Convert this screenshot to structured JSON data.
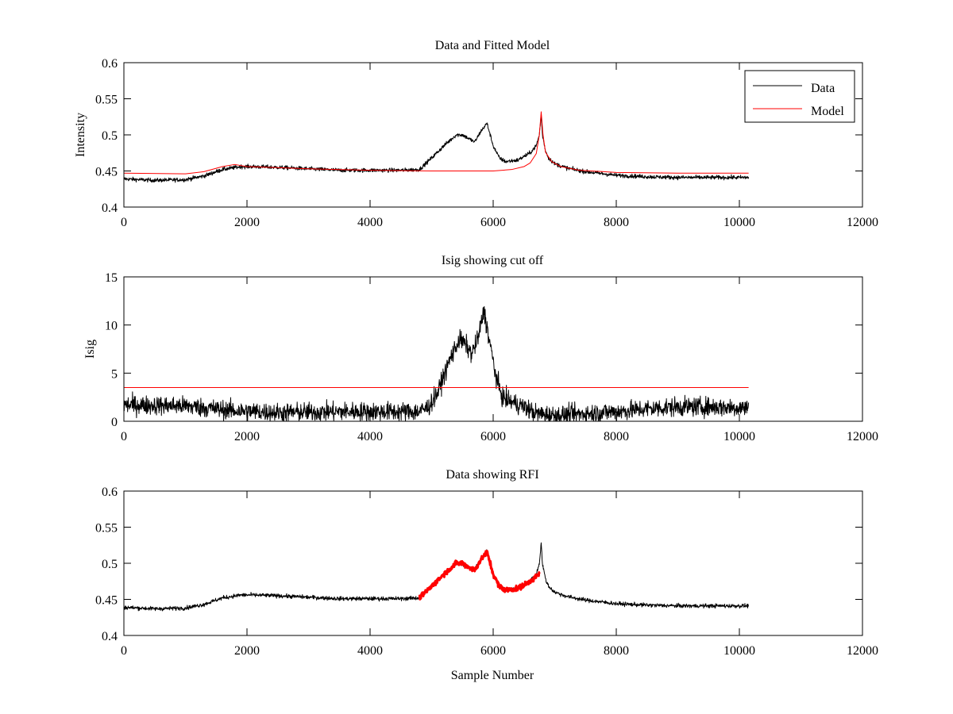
{
  "figure": {
    "background": "#ffffff",
    "axis_color": "#000000",
    "data_color": "#000000",
    "model_color": "#ff0000",
    "rfi_color": "#ff0000"
  },
  "chart_data": [
    {
      "type": "line",
      "title": "Data and Fitted Model",
      "xlabel": "",
      "ylabel": "Intensity",
      "xlim": [
        0,
        12000
      ],
      "ylim": [
        0.4,
        0.6
      ],
      "xticks": [
        0,
        2000,
        4000,
        6000,
        8000,
        10000,
        12000
      ],
      "xtick_labels": [
        "0",
        "2000",
        "4000",
        "6000",
        "8000",
        "10000",
        "12000"
      ],
      "yticks": [
        0.4,
        0.45,
        0.5,
        0.55,
        0.6
      ],
      "ytick_labels": [
        "0.4",
        "0.45",
        "0.5",
        "0.55",
        "0.6"
      ],
      "grid": false,
      "legend": {
        "placement": "top-right",
        "entries": [
          "Data",
          "Model"
        ]
      },
      "series": [
        {
          "name": "Data",
          "color": "#000000",
          "noise": 0.004,
          "x": [
            0,
            500,
            1000,
            1300,
            1600,
            1900,
            2100,
            2500,
            3000,
            3500,
            4000,
            4500,
            4800,
            5000,
            5200,
            5400,
            5500,
            5600,
            5700,
            5800,
            5900,
            6000,
            6100,
            6200,
            6400,
            6600,
            6700,
            6750,
            6780,
            6800,
            6850,
            6900,
            7000,
            7200,
            7500,
            8000,
            8500,
            9000,
            9500,
            10150
          ],
          "y": [
            0.439,
            0.437,
            0.438,
            0.443,
            0.452,
            0.456,
            0.456,
            0.455,
            0.453,
            0.451,
            0.451,
            0.451,
            0.452,
            0.468,
            0.485,
            0.5,
            0.5,
            0.495,
            0.49,
            0.505,
            0.516,
            0.485,
            0.468,
            0.463,
            0.465,
            0.475,
            0.485,
            0.5,
            0.528,
            0.5,
            0.478,
            0.468,
            0.46,
            0.454,
            0.449,
            0.444,
            0.442,
            0.441,
            0.441,
            0.441
          ]
        },
        {
          "name": "Model",
          "color": "#ff0000",
          "x": [
            0,
            1000,
            1300,
            1600,
            1800,
            2000,
            2400,
            3000,
            4000,
            5000,
            6000,
            6300,
            6500,
            6600,
            6700,
            6750,
            6780,
            6810,
            6850,
            6950,
            7100,
            7400,
            8000,
            9000,
            10150
          ],
          "y": [
            0.447,
            0.446,
            0.449,
            0.456,
            0.459,
            0.456,
            0.455,
            0.453,
            0.451,
            0.45,
            0.45,
            0.452,
            0.456,
            0.461,
            0.474,
            0.5,
            0.532,
            0.5,
            0.476,
            0.463,
            0.456,
            0.451,
            0.448,
            0.447,
            0.447
          ]
        }
      ]
    },
    {
      "type": "line",
      "title": "Isig showing cut off",
      "xlabel": "",
      "ylabel": "Isig",
      "xlim": [
        0,
        12000
      ],
      "ylim": [
        0,
        15
      ],
      "xticks": [
        0,
        2000,
        4000,
        6000,
        8000,
        10000,
        12000
      ],
      "xtick_labels": [
        "0",
        "2000",
        "4000",
        "6000",
        "8000",
        "10000",
        "12000"
      ],
      "yticks": [
        0,
        5,
        10,
        15
      ],
      "ytick_labels": [
        "0",
        "5",
        "10",
        "15"
      ],
      "grid": false,
      "series": [
        {
          "color": "#000000",
          "noise": 1.4,
          "x": [
            0,
            1000,
            1800,
            2500,
            3500,
            4500,
            4800,
            4950,
            5100,
            5300,
            5450,
            5550,
            5650,
            5750,
            5850,
            5950,
            6050,
            6150,
            6300,
            6500,
            6700,
            7000,
            7500,
            8000,
            8500,
            9000,
            9500,
            10150
          ],
          "y": [
            1.7,
            1.6,
            1.1,
            0.9,
            1.0,
            1.0,
            1.0,
            1.5,
            3.0,
            6.5,
            8.5,
            8.0,
            7.0,
            8.5,
            11.5,
            8.0,
            4.5,
            2.5,
            2.0,
            1.5,
            0.8,
            0.6,
            0.8,
            1.0,
            1.3,
            1.5,
            1.5,
            1.4
          ]
        },
        {
          "color": "#ff0000",
          "x": [
            0,
            10150
          ],
          "y": [
            3.5,
            3.5
          ]
        }
      ]
    },
    {
      "type": "line",
      "title": "Data showing RFI",
      "xlabel": "Sample Number",
      "ylabel": "",
      "xlim": [
        0,
        12000
      ],
      "ylim": [
        0.4,
        0.6
      ],
      "xticks": [
        0,
        2000,
        4000,
        6000,
        8000,
        10000,
        12000
      ],
      "xtick_labels": [
        "0",
        "2000",
        "4000",
        "6000",
        "8000",
        "10000",
        "12000"
      ],
      "yticks": [
        0.4,
        0.45,
        0.5,
        0.55,
        0.6
      ],
      "ytick_labels": [
        "0.4",
        "0.45",
        "0.5",
        "0.55",
        "0.6"
      ],
      "grid": false,
      "series": [
        {
          "color": "#000000",
          "noise": 0.004,
          "x": [
            0,
            500,
            1000,
            1300,
            1600,
            1900,
            2100,
            2500,
            3000,
            3500,
            4000,
            4500,
            4800,
            5000,
            5200,
            5400,
            5500,
            5600,
            5700,
            5800,
            5900,
            6000,
            6100,
            6200,
            6400,
            6600,
            6700,
            6750,
            6780,
            6800,
            6850,
            6900,
            7000,
            7200,
            7500,
            8000,
            8500,
            9000,
            9500,
            10150
          ],
          "y": [
            0.439,
            0.437,
            0.438,
            0.443,
            0.452,
            0.456,
            0.456,
            0.455,
            0.453,
            0.451,
            0.451,
            0.451,
            0.452,
            0.468,
            0.485,
            0.5,
            0.5,
            0.495,
            0.49,
            0.505,
            0.516,
            0.485,
            0.468,
            0.463,
            0.465,
            0.475,
            0.485,
            0.5,
            0.528,
            0.5,
            0.478,
            0.468,
            0.46,
            0.454,
            0.449,
            0.444,
            0.442,
            0.441,
            0.441,
            0.441
          ]
        },
        {
          "color": "#ff0000",
          "noise": 0.005,
          "width": 3,
          "x": [
            4800,
            5000,
            5200,
            5400,
            5500,
            5600,
            5700,
            5800,
            5900,
            6000,
            6100,
            6200,
            6400,
            6600,
            6750
          ],
          "y": [
            0.452,
            0.468,
            0.485,
            0.5,
            0.5,
            0.495,
            0.49,
            0.505,
            0.516,
            0.485,
            0.468,
            0.463,
            0.465,
            0.475,
            0.485
          ]
        }
      ]
    }
  ]
}
